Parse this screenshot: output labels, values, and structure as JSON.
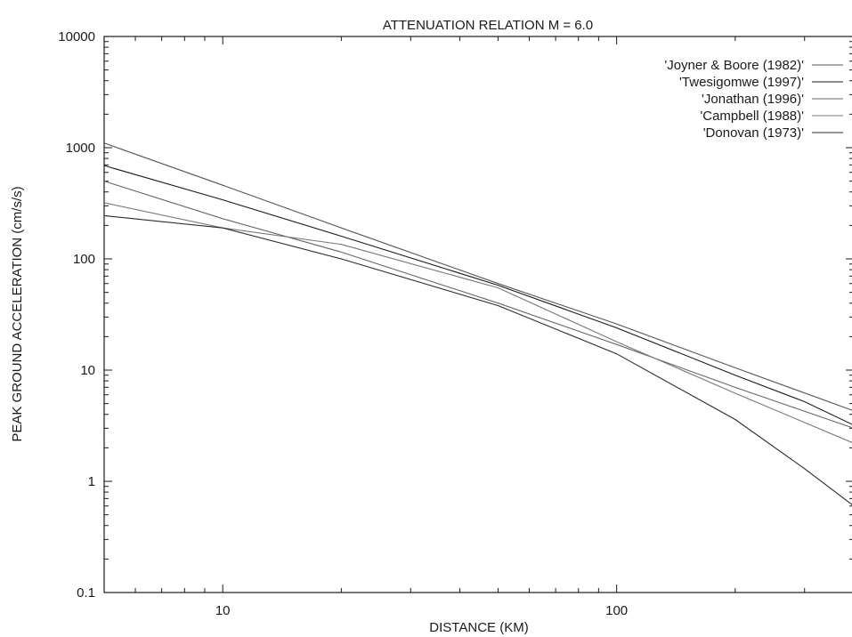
{
  "chart_data": {
    "type": "line",
    "title": "ATTENUATION RELATION M = 6.0",
    "xlabel": "DISTANCE (KM)",
    "ylabel": "PEAK GROUND ACCELERATION (cm/s/s)",
    "xscale": "log",
    "yscale": "log",
    "xlim": [
      5,
      400
    ],
    "ylim": [
      0.1,
      10000
    ],
    "x_ticks": [
      10,
      100
    ],
    "x_tick_labels": [
      "10",
      "100"
    ],
    "y_ticks": [
      0.1,
      1,
      10,
      100,
      1000,
      10000
    ],
    "y_tick_labels": [
      "0.1",
      "1",
      "10",
      "100",
      "1000",
      "10000"
    ],
    "grid": false,
    "legend_position": "top-right",
    "series": [
      {
        "name": "'Joyner & Boore (1982)'",
        "color": "#555555",
        "points": [
          [
            5,
            1100
          ],
          [
            10,
            460
          ],
          [
            20,
            190
          ],
          [
            50,
            60
          ],
          [
            100,
            26
          ],
          [
            200,
            10.5
          ],
          [
            400,
            4.3
          ]
        ]
      },
      {
        "name": "'Twesigomwe (1997)'",
        "color": "#1a1a1a",
        "points": [
          [
            5,
            690
          ],
          [
            10,
            340
          ],
          [
            20,
            160
          ],
          [
            50,
            58
          ],
          [
            100,
            24
          ],
          [
            200,
            9
          ],
          [
            300,
            5.2
          ],
          [
            400,
            3.2
          ]
        ]
      },
      {
        "name": "'Jonathan (1996)'",
        "color": "#666666",
        "points": [
          [
            5,
            500
          ],
          [
            10,
            230
          ],
          [
            20,
            115
          ],
          [
            50,
            40
          ],
          [
            100,
            17
          ],
          [
            200,
            7
          ],
          [
            400,
            3.0
          ]
        ]
      },
      {
        "name": "'Campbell (1988)'",
        "color": "#777777",
        "points": [
          [
            5,
            320
          ],
          [
            10,
            190
          ],
          [
            20,
            135
          ],
          [
            50,
            55
          ],
          [
            100,
            18
          ],
          [
            200,
            6.2
          ],
          [
            400,
            2.2
          ]
        ]
      },
      {
        "name": "'Donovan (1973)'",
        "color": "#2a2a2a",
        "points": [
          [
            5,
            245
          ],
          [
            10,
            190
          ],
          [
            20,
            100
          ],
          [
            50,
            38
          ],
          [
            100,
            14
          ],
          [
            200,
            3.6
          ],
          [
            300,
            1.3
          ],
          [
            400,
            0.6
          ]
        ]
      }
    ]
  }
}
